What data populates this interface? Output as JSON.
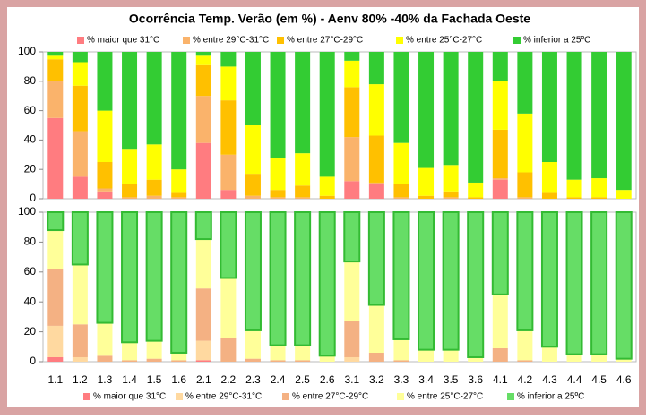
{
  "chart_data": [
    {
      "type": "bar",
      "stacked": true,
      "title": "Ocorrência Temp. Verão (em %)  - Aenv 80% -40% da Fachada  Oeste",
      "ylim": [
        0,
        100
      ],
      "yticks": [
        0,
        20,
        40,
        60,
        80,
        100
      ],
      "series": [
        {
          "name": "% maior que 31°C",
          "color": "#ff7c80",
          "values": [
            55,
            15,
            5,
            0,
            0,
            0,
            38,
            6,
            0,
            0,
            0,
            0,
            12,
            10,
            0,
            0,
            0,
            0,
            13,
            0,
            0,
            0,
            0,
            0
          ]
        },
        {
          "name": "% entre 29°C-31°C",
          "color": "#fab36b",
          "values": [
            25,
            31,
            2,
            1,
            2,
            1,
            32,
            24,
            2,
            1,
            1,
            0,
            30,
            1,
            1,
            0,
            1,
            0,
            1,
            1,
            0,
            0,
            0,
            0
          ]
        },
        {
          "name": "% entre 27°C-29°C",
          "color": "#ffc000",
          "values": [
            15,
            31,
            18,
            9,
            11,
            3,
            21,
            37,
            15,
            5,
            8,
            2,
            34,
            32,
            9,
            2,
            4,
            1,
            33,
            17,
            4,
            1,
            1,
            0
          ]
        },
        {
          "name": "% entre 25°C-27°C",
          "color": "#ffff00",
          "values": [
            3,
            16,
            35,
            24,
            24,
            16,
            7,
            23,
            33,
            22,
            22,
            13,
            18,
            35,
            28,
            19,
            18,
            10,
            33,
            40,
            21,
            12,
            13,
            6
          ]
        },
        {
          "name": "% inferior a 25ºC",
          "color": "#33cc33",
          "values": [
            2,
            7,
            40,
            66,
            63,
            80,
            2,
            10,
            50,
            72,
            69,
            85,
            6,
            22,
            62,
            79,
            77,
            89,
            20,
            42,
            75,
            87,
            86,
            94
          ]
        }
      ]
    },
    {
      "type": "bar",
      "stacked": true,
      "categories": [
        "1.1",
        "1.2",
        "1.3",
        "1.4",
        "1.5",
        "1.6",
        "2.1",
        "2.2",
        "2.3",
        "2.4",
        "2.5",
        "2.6",
        "3.1",
        "3.2",
        "3.3",
        "3.4",
        "3.5",
        "3.6",
        "4.1",
        "4.2",
        "4.3",
        "4.4",
        "4.5",
        "4.6"
      ],
      "ylim": [
        0,
        100
      ],
      "yticks": [
        0,
        20,
        40,
        60,
        80,
        100
      ],
      "series": [
        {
          "name": "% maior que 31°C",
          "color": "#ff7c80",
          "values": [
            3,
            0,
            0,
            0,
            0,
            0,
            1,
            0,
            0,
            0,
            0,
            0,
            0,
            0,
            0,
            0,
            0,
            0,
            0,
            0,
            0,
            0,
            0,
            0
          ]
        },
        {
          "name": "% entre 29°C-31°C",
          "color": "#ffd9a0",
          "values": [
            21,
            3,
            0,
            0,
            0,
            0,
            13,
            0,
            0,
            0,
            0,
            0,
            3,
            0,
            0,
            0,
            0,
            0,
            0,
            0,
            0,
            0,
            0,
            0
          ]
        },
        {
          "name": "% entre 27°C-29°C",
          "color": "#f4b183",
          "values": [
            38,
            22,
            4,
            1,
            2,
            1,
            35,
            16,
            2,
            1,
            1,
            0,
            24,
            6,
            1,
            0,
            0,
            0,
            9,
            1,
            0,
            0,
            0,
            0
          ]
        },
        {
          "name": "% entre 25°C-27°C",
          "color": "#ffff99",
          "values": [
            26,
            40,
            22,
            12,
            12,
            5,
            33,
            40,
            19,
            10,
            10,
            4,
            40,
            32,
            14,
            8,
            8,
            3,
            36,
            20,
            10,
            5,
            5,
            2
          ]
        },
        {
          "name": "% inferior a 25ºC",
          "color": "#66dd66",
          "values": [
            12,
            35,
            74,
            87,
            86,
            94,
            18,
            44,
            79,
            89,
            89,
            96,
            33,
            62,
            85,
            92,
            92,
            97,
            55,
            79,
            90,
            95,
            95,
            98
          ]
        }
      ]
    }
  ]
}
